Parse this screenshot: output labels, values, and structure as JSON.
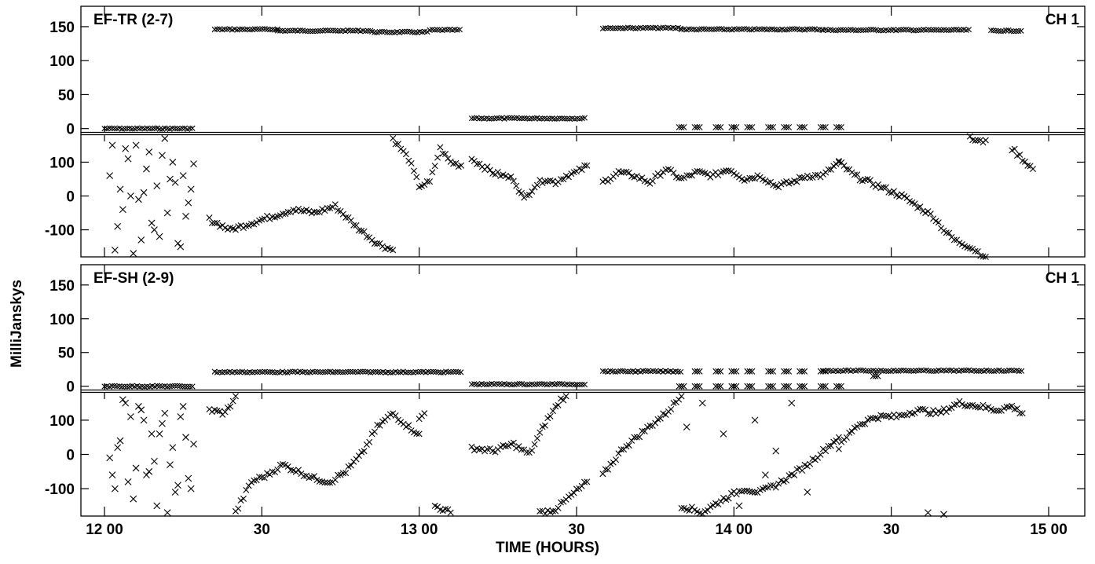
{
  "chart_data": {
    "type": "scatter",
    "xlabel": "TIME (HOURS)",
    "ylabel": "MilliJanskys",
    "x_unit": "minutes after 12 00",
    "xlim": [
      0,
      180
    ],
    "x_ticks": [
      {
        "value": 0,
        "label": "12 00"
      },
      {
        "value": 30,
        "label": "30"
      },
      {
        "value": 60,
        "label": "13 00"
      },
      {
        "value": 90,
        "label": "30"
      },
      {
        "value": 120,
        "label": "14 00"
      },
      {
        "value": 150,
        "label": "30"
      },
      {
        "value": 180,
        "label": "15 00"
      }
    ],
    "panels": [
      {
        "baseline": "EF-TR (2-7)",
        "channel": "CH 1",
        "amplitude": {
          "ylim": [
            -5,
            180
          ],
          "y_ticks": [
            0,
            50,
            100,
            150
          ],
          "segments": [
            {
              "x": [
                0,
                17
              ],
              "y": 0
            },
            {
              "x": [
                21,
                33
              ],
              "y": 146
            },
            {
              "x": [
                33,
                51
              ],
              "y": 144
            },
            {
              "x": [
                51,
                62
              ],
              "y": 142
            },
            {
              "x": [
                62,
                68
              ],
              "y": 145
            },
            {
              "x": [
                70,
                92
              ],
              "y": 15
            },
            {
              "x": [
                95,
                110
              ],
              "y": 148
            },
            {
              "x": [
                110,
                137
              ],
              "y": 146
            },
            {
              "x": [
                137,
                165
              ],
              "y": 145
            },
            {
              "x": [
                169,
                175
              ],
              "y": 144
            }
          ],
          "points": [
            {
              "x": 110,
              "y": 2
            },
            {
              "x": 113,
              "y": 2
            },
            {
              "x": 117,
              "y": 2
            },
            {
              "x": 120,
              "y": 2
            },
            {
              "x": 123,
              "y": 2
            },
            {
              "x": 127,
              "y": 2
            },
            {
              "x": 130,
              "y": 2
            },
            {
              "x": 133,
              "y": 2
            },
            {
              "x": 137,
              "y": 2
            },
            {
              "x": 140,
              "y": 2
            }
          ]
        },
        "phase": {
          "ylim": [
            -180,
            180
          ],
          "y_ticks": [
            -100,
            0,
            100
          ],
          "traces": [
            {
              "x": [
                20,
                24,
                28,
                32,
                36,
                40,
                44,
                48,
                52,
                55
              ],
              "y": [
                -70,
                -100,
                -80,
                -60,
                -40,
                -50,
                -30,
                -90,
                -140,
                -160
              ]
            },
            {
              "x": [
                55,
                58,
                60,
                62,
                64,
                66,
                68
              ],
              "y": [
                170,
                110,
                30,
                40,
                140,
                100,
                90
              ]
            },
            {
              "x": [
                70,
                74,
                78,
                80,
                82,
                84,
                86,
                88,
                90,
                92
              ],
              "y": [
                110,
                70,
                50,
                -10,
                30,
                50,
                40,
                60,
                70,
                90
              ]
            },
            {
              "x": [
                95,
                98,
                101,
                104,
                107,
                110,
                113,
                116,
                119,
                122,
                125,
                128,
                131,
                134,
                137,
                140
              ],
              "y": [
                40,
                70,
                60,
                40,
                80,
                50,
                70,
                60,
                80,
                50,
                60,
                30,
                40,
                60,
                60,
                100
              ]
            },
            {
              "x": [
                140,
                143,
                146,
                149,
                152,
                155,
                158,
                160,
                162,
                165,
                167,
                168
              ],
              "y": [
                100,
                60,
                40,
                20,
                0,
                -30,
                -60,
                -100,
                -130,
                -150,
                -170,
                -180
              ]
            },
            {
              "x": [
                165,
                167,
                168
              ],
              "y": [
                170,
                160,
                165
              ]
            },
            {
              "x": [
                173,
                175,
                177
              ],
              "y": [
                140,
                110,
                80
              ]
            }
          ],
          "scatter": [
            {
              "x": [
                1,
                2,
                3,
                4,
                5,
                6,
                7,
                8,
                9,
                10,
                11,
                12,
                13,
                14,
                15,
                16,
                17,
                1.5,
                3.5,
                5.5,
                7.5,
                9.5,
                11.5,
                13.5,
                15.5,
                2.5,
                4.5,
                6.5,
                8.5,
                10.5,
                12.5,
                14.5,
                16.5
              ],
              "y": [
                60,
                -160,
                20,
                140,
                0,
                150,
                -130,
                80,
                -80,
                30,
                120,
                -50,
                100,
                -140,
                60,
                -20,
                95,
                150,
                -40,
                -170,
                10,
                -100,
                170,
                40,
                -60,
                -90,
                110,
                -10,
                130,
                -120,
                50,
                -150,
                20
              ]
            }
          ]
        }
      },
      {
        "baseline": "EF-SH (2-9)",
        "channel": "CH 1",
        "amplitude": {
          "ylim": [
            -5,
            180
          ],
          "y_ticks": [
            0,
            50,
            100,
            150
          ],
          "segments": [
            {
              "x": [
                0,
                17
              ],
              "y": 0
            },
            {
              "x": [
                21,
                68
              ],
              "y": 21
            },
            {
              "x": [
                70,
                92
              ],
              "y": 3
            },
            {
              "x": [
                95,
                110
              ],
              "y": 22
            },
            {
              "x": [
                137,
                175
              ],
              "y": 23
            }
          ],
          "points": [
            {
              "x": 110,
              "y": 0
            },
            {
              "x": 113,
              "y": 0
            },
            {
              "x": 117,
              "y": 0
            },
            {
              "x": 120,
              "y": 0
            },
            {
              "x": 123,
              "y": 0
            },
            {
              "x": 127,
              "y": 0
            },
            {
              "x": 130,
              "y": 0
            },
            {
              "x": 133,
              "y": 0
            },
            {
              "x": 137,
              "y": 0
            },
            {
              "x": 140,
              "y": 0
            },
            {
              "x": 113,
              "y": 22
            },
            {
              "x": 117,
              "y": 22
            },
            {
              "x": 120,
              "y": 22
            },
            {
              "x": 123,
              "y": 22
            },
            {
              "x": 127,
              "y": 22
            },
            {
              "x": 130,
              "y": 22
            },
            {
              "x": 133,
              "y": 22
            },
            {
              "x": 137,
              "y": 22
            },
            {
              "x": 147,
              "y": 15
            }
          ]
        },
        "phase": {
          "ylim": [
            -180,
            180
          ],
          "y_ticks": [
            -100,
            0,
            100
          ],
          "traces": [
            {
              "x": [
                20,
                23,
                25
              ],
              "y": [
                130,
                120,
                170
              ]
            },
            {
              "x": [
                25,
                28,
                31,
                34,
                37,
                40,
                43,
                46,
                49,
                52,
                55,
                58,
                60
              ],
              "y": [
                -170,
                -80,
                -60,
                -30,
                -50,
                -70,
                -80,
                -50,
                0,
                80,
                120,
                80,
                60
              ]
            },
            {
              "x": [
                60,
                61
              ],
              "y": [
                100,
                120
              ]
            },
            {
              "x": [
                63,
                66
              ],
              "y": [
                -150,
                -170
              ]
            },
            {
              "x": [
                70,
                74,
                78,
                81,
                84,
                87,
                88
              ],
              "y": [
                20,
                10,
                30,
                0,
                90,
                160,
                170
              ]
            },
            {
              "x": [
                83,
                86,
                89,
                92
              ],
              "y": [
                -170,
                -160,
                -120,
                -80
              ]
            },
            {
              "x": [
                95,
                99,
                103,
                107,
                110
              ],
              "y": [
                -60,
                20,
                70,
                120,
                170
              ]
            },
            {
              "x": [
                110,
                114,
                118,
                122,
                125,
                128,
                131,
                134,
                137,
                140
              ],
              "y": [
                -150,
                -170,
                -130,
                -100,
                -110,
                -90,
                -60,
                -30,
                10,
                50
              ]
            },
            {
              "x": [
                140,
                143,
                147,
                151,
                155,
                159,
                163,
                167,
                170,
                173,
                175
              ],
              "y": [
                20,
                80,
                110,
                110,
                130,
                120,
                150,
                140,
                130,
                140,
                120
              ]
            }
          ],
          "scatter": [
            {
              "x": [
                1,
                2,
                3,
                4,
                5,
                6,
                7,
                8,
                9,
                10,
                11,
                12,
                13,
                14,
                15,
                16,
                17,
                1.5,
                3.5,
                5.5,
                7.5,
                9.5,
                11.5,
                13.5,
                15.5,
                2.5,
                4.5,
                6.5,
                8.5,
                10.5,
                12.5,
                14.5,
                16.5,
                111,
                114,
                118,
                121,
                124,
                126,
                128,
                131,
                134,
                157,
                160
              ],
              "y": [
                -10,
                -100,
                40,
                150,
                110,
                -40,
                130,
                -60,
                60,
                -150,
                90,
                -170,
                20,
                -90,
                140,
                -70,
                30,
                -60,
                160,
                -130,
                100,
                -20,
                120,
                -110,
                50,
                20,
                -80,
                140,
                -50,
                60,
                -30,
                110,
                -100,
                80,
                150,
                60,
                -150,
                100,
                -60,
                10,
                150,
                -110,
                -170,
                -175
              ]
            }
          ]
        }
      }
    ]
  }
}
